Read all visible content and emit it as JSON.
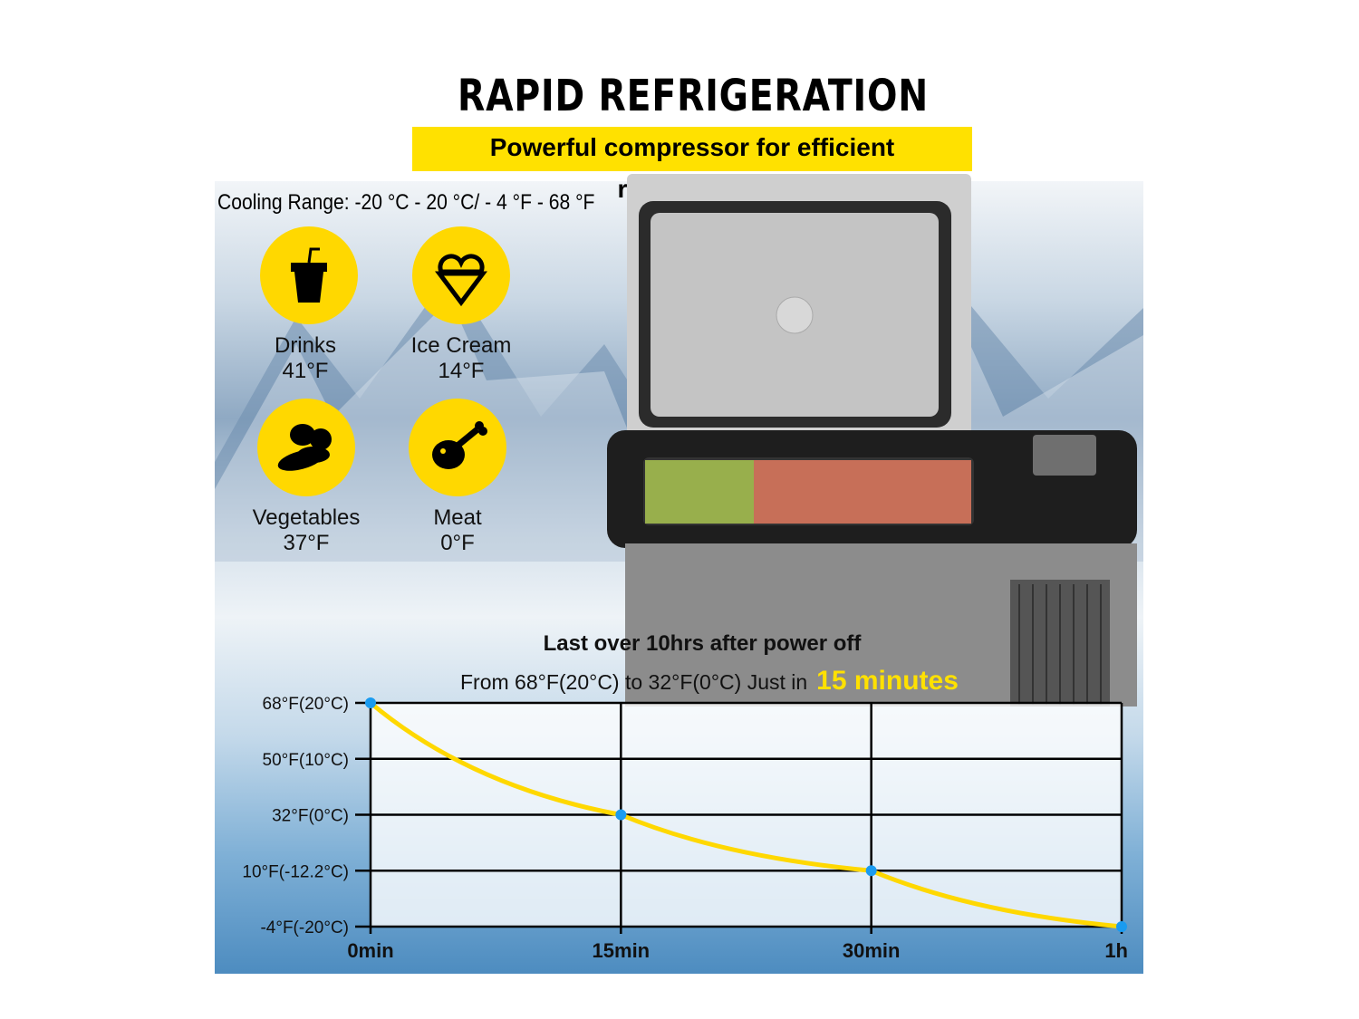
{
  "title": "RAPID REFRIGERATION",
  "banner": "Powerful compressor for efficient refrigeration",
  "cooling_range": "Cooling Range: -20 °C - 20 °C/ - 4 °F - 68 °F",
  "categories": [
    {
      "label": "Drinks",
      "temp": "41°F",
      "icon": "drink-cup-icon"
    },
    {
      "label": "Ice Cream",
      "temp": "14°F",
      "icon": "ice-cream-icon"
    },
    {
      "label": "Vegetables",
      "temp": "37°F",
      "icon": "vegetables-icon"
    },
    {
      "label": "Meat",
      "temp": "0°F",
      "icon": "drumstick-icon"
    }
  ],
  "chart_heading": "Last over 10hrs after power off",
  "chart_subheading": "From 68°F(20°C) to 32°F(0°C) Just in",
  "chart_highlight": "15 minutes",
  "colors": {
    "accent": "#ffd800",
    "line": "#ffd800",
    "points": "#1a9bf0"
  },
  "chart_data": {
    "type": "line",
    "x_ticks": [
      "0min",
      "15min",
      "30min",
      "1h"
    ],
    "y_ticks": [
      "68°F(20°C)",
      "50°F(10°C)",
      "32°F(0°C)",
      "10°F(-12.2°C)",
      "-4°F(-20°C)"
    ],
    "y_tick_values_f": [
      68,
      50,
      32,
      10,
      -4
    ],
    "x": [
      "0min",
      "15min",
      "30min",
      "1h"
    ],
    "values_f": [
      68,
      32,
      10,
      -4
    ],
    "ylim_f": [
      -4,
      68
    ],
    "grid": true
  }
}
